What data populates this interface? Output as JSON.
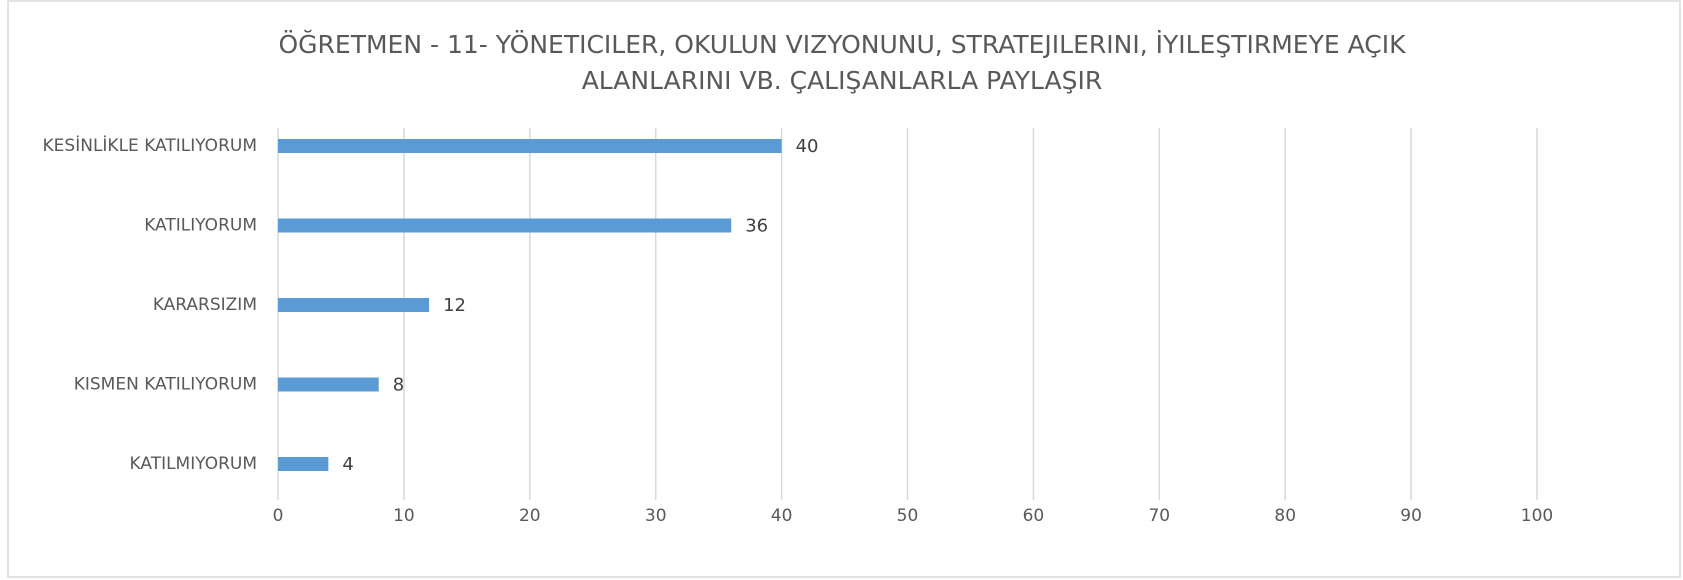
{
  "chart_data": {
    "type": "bar",
    "orientation": "horizontal",
    "title": [
      "ÖĞRETMEN - 11- YÖNETICILER, OKULUN VIZYONUNU, STRATEJILERINI, İYILEŞTIRMEYE AÇIK",
      "ALANLARINI VB. ÇALIŞANLARLA PAYLAŞIR"
    ],
    "categories": [
      "KESİNLİKLE KATILIYORUM",
      "KATILIYORUM",
      "KARARSIZIM",
      "KISMEN KATILIYORUM",
      "KATILMIYORUM"
    ],
    "values": [
      40,
      36,
      12,
      8,
      4
    ],
    "color": "#5b9bd5",
    "xlim": [
      0,
      100
    ],
    "xticks": [
      0,
      10,
      20,
      30,
      40,
      50,
      60,
      70,
      80,
      90,
      100
    ],
    "grid": true
  }
}
